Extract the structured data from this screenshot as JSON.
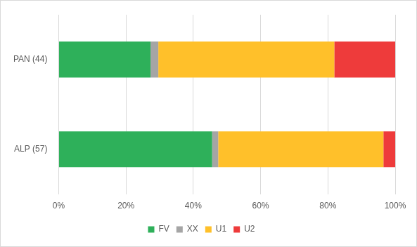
{
  "chart_data": {
    "type": "bar",
    "orientation": "horizontal",
    "stacked": true,
    "categories": [
      "PAN (44)",
      "ALP (57)"
    ],
    "series": [
      {
        "name": "FV",
        "color": "#2eb05a",
        "values": [
          27.3,
          45.6
        ]
      },
      {
        "name": "XX",
        "color": "#a5a5a5",
        "values": [
          2.3,
          1.8
        ]
      },
      {
        "name": "U1",
        "color": "#ffc02a",
        "values": [
          52.3,
          49.1
        ]
      },
      {
        "name": "U2",
        "color": "#ee3b3b",
        "values": [
          18.1,
          3.5
        ]
      }
    ],
    "xlim": [
      0,
      100
    ],
    "xticks": [
      {
        "value": 0,
        "label": "0%"
      },
      {
        "value": 20,
        "label": "20%"
      },
      {
        "value": 40,
        "label": "40%"
      },
      {
        "value": 60,
        "label": "60%"
      },
      {
        "value": 80,
        "label": "80%"
      },
      {
        "value": 100,
        "label": "100%"
      }
    ],
    "grid": true,
    "legend": "bottom"
  }
}
